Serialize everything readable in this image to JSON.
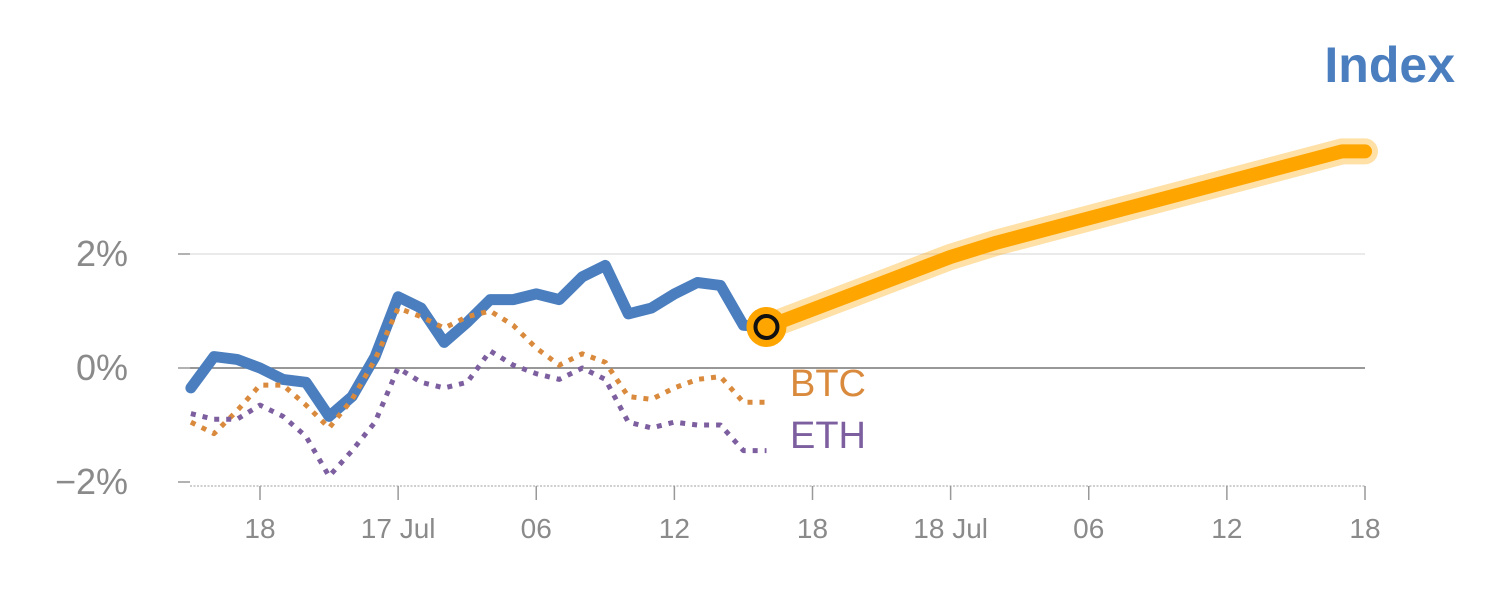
{
  "chart_data": {
    "type": "line",
    "title": "Index",
    "xlabel": "",
    "ylabel": "",
    "ylim": [
      -2.1,
      3.3
    ],
    "x_tick_labels": [
      "18",
      "17 Jul",
      "06",
      "12",
      "18",
      "18 Jul",
      "06",
      "12",
      "18"
    ],
    "y_ticks": [
      {
        "value": 2,
        "label": "2%"
      },
      {
        "value": 0,
        "label": "0%"
      },
      {
        "value": -2,
        "label": "−2%"
      }
    ],
    "grid": "horizontal",
    "series": [
      {
        "name": "Index",
        "style": "solid",
        "color": "#4a7ebf",
        "x": [
          "2023-07-16T15:00",
          "2023-07-16T16:00",
          "2023-07-16T17:00",
          "2023-07-16T18:00",
          "2023-07-16T19:00",
          "2023-07-16T20:00",
          "2023-07-16T21:00",
          "2023-07-16T22:00",
          "2023-07-16T23:00",
          "2023-07-17T00:00",
          "2023-07-17T01:00",
          "2023-07-17T02:00",
          "2023-07-17T03:00",
          "2023-07-17T04:00",
          "2023-07-17T05:00",
          "2023-07-17T06:00",
          "2023-07-17T07:00",
          "2023-07-17T08:00",
          "2023-07-17T09:00",
          "2023-07-17T10:00",
          "2023-07-17T11:00",
          "2023-07-17T12:00",
          "2023-07-17T13:00",
          "2023-07-17T14:00",
          "2023-07-17T15:00",
          "2023-07-17T16:00"
        ],
        "values": [
          -0.35,
          0.2,
          0.15,
          0.0,
          -0.2,
          -0.25,
          -0.85,
          -0.5,
          0.2,
          1.25,
          1.05,
          0.45,
          0.8,
          1.2,
          1.2,
          1.3,
          1.2,
          1.6,
          1.8,
          0.95,
          1.05,
          1.3,
          1.5,
          1.45,
          0.75,
          0.72
        ]
      },
      {
        "name": "BTC",
        "style": "dotted",
        "color": "#d98a3d",
        "x": [
          "2023-07-16T15:00",
          "2023-07-16T16:00",
          "2023-07-16T17:00",
          "2023-07-16T18:00",
          "2023-07-16T19:00",
          "2023-07-16T20:00",
          "2023-07-16T21:00",
          "2023-07-16T22:00",
          "2023-07-16T23:00",
          "2023-07-17T00:00",
          "2023-07-17T01:00",
          "2023-07-17T02:00",
          "2023-07-17T03:00",
          "2023-07-17T04:00",
          "2023-07-17T05:00",
          "2023-07-17T06:00",
          "2023-07-17T07:00",
          "2023-07-17T08:00",
          "2023-07-17T09:00",
          "2023-07-17T10:00",
          "2023-07-17T11:00",
          "2023-07-17T12:00",
          "2023-07-17T13:00",
          "2023-07-17T14:00",
          "2023-07-17T15:00",
          "2023-07-17T16:00"
        ],
        "values": [
          -0.95,
          -1.15,
          -0.75,
          -0.3,
          -0.3,
          -0.65,
          -1.05,
          -0.55,
          0.15,
          1.05,
          0.9,
          0.7,
          0.9,
          1.0,
          0.75,
          0.35,
          0.05,
          0.25,
          0.1,
          -0.5,
          -0.55,
          -0.35,
          -0.2,
          -0.15,
          -0.6,
          -0.6
        ]
      },
      {
        "name": "ETH",
        "style": "dotted",
        "color": "#7d5fa0",
        "x": [
          "2023-07-16T15:00",
          "2023-07-16T16:00",
          "2023-07-16T17:00",
          "2023-07-16T18:00",
          "2023-07-16T19:00",
          "2023-07-16T20:00",
          "2023-07-16T21:00",
          "2023-07-16T22:00",
          "2023-07-16T23:00",
          "2023-07-17T00:00",
          "2023-07-17T01:00",
          "2023-07-17T02:00",
          "2023-07-17T03:00",
          "2023-07-17T04:00",
          "2023-07-17T05:00",
          "2023-07-17T06:00",
          "2023-07-17T07:00",
          "2023-07-17T08:00",
          "2023-07-17T09:00",
          "2023-07-17T10:00",
          "2023-07-17T11:00",
          "2023-07-17T12:00",
          "2023-07-17T13:00",
          "2023-07-17T14:00",
          "2023-07-17T15:00",
          "2023-07-17T16:00"
        ],
        "values": [
          -0.8,
          -0.9,
          -0.9,
          -0.65,
          -0.85,
          -1.2,
          -1.9,
          -1.45,
          -0.95,
          0.0,
          -0.25,
          -0.35,
          -0.25,
          0.3,
          0.05,
          -0.1,
          -0.2,
          0.0,
          -0.2,
          -0.95,
          -1.05,
          -0.95,
          -1.0,
          -1.0,
          -1.45,
          -1.45
        ]
      },
      {
        "name": "",
        "style": "projection",
        "color": "#ffa500",
        "x": [
          "2023-07-17T16:00",
          "2023-07-18T00:00",
          "2023-07-18T02:00",
          "2023-07-18T17:00",
          "2023-07-18T18:00"
        ],
        "values": [
          0.72,
          1.95,
          2.2,
          3.8,
          3.8
        ]
      }
    ],
    "current_point": {
      "x": "2023-07-17T16:00",
      "value": 0.72
    }
  },
  "colors": {
    "title": "#4a7ebf",
    "axis_text": "#8a8a8a",
    "zero_line": "#777777",
    "grid": "#e3e3e3",
    "marker_fill": "#ffa500",
    "marker_ring": "#111111"
  }
}
